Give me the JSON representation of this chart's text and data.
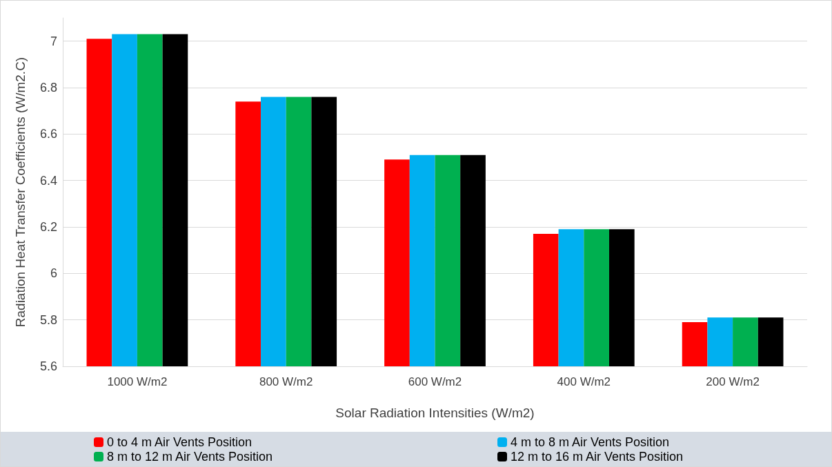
{
  "chart_data": {
    "type": "bar",
    "xlabel": "Solar Radiation Intensities (W/m2)",
    "ylabel": "Radiation Heat Transfer Coefficients (W/m2.C)",
    "categories": [
      "1000 W/m2",
      "800 W/m2",
      "600 W/m2",
      "400 W/m2",
      "200 W/m2"
    ],
    "series": [
      {
        "name": "0 to 4 m Air Vents Position",
        "color": "#ff0000",
        "values": [
          7.01,
          6.74,
          6.49,
          6.17,
          5.79
        ]
      },
      {
        "name": "4 m to 8 m Air Vents Position",
        "color": "#00b0f0",
        "values": [
          7.03,
          6.76,
          6.51,
          6.19,
          5.81
        ]
      },
      {
        "name": "8 m to 12 m Air Vents Position",
        "color": "#00b050",
        "values": [
          7.03,
          6.76,
          6.51,
          6.19,
          5.81
        ]
      },
      {
        "name": "12 m to 16 m Air Vents Position",
        "color": "#000000",
        "values": [
          7.03,
          6.76,
          6.51,
          6.19,
          5.81
        ]
      }
    ],
    "ylim": [
      5.6,
      7.1
    ],
    "yticks": [
      5.6,
      5.8,
      6,
      6.2,
      6.4,
      6.6,
      6.8,
      7
    ],
    "grid": "y",
    "legend": "bottom"
  }
}
